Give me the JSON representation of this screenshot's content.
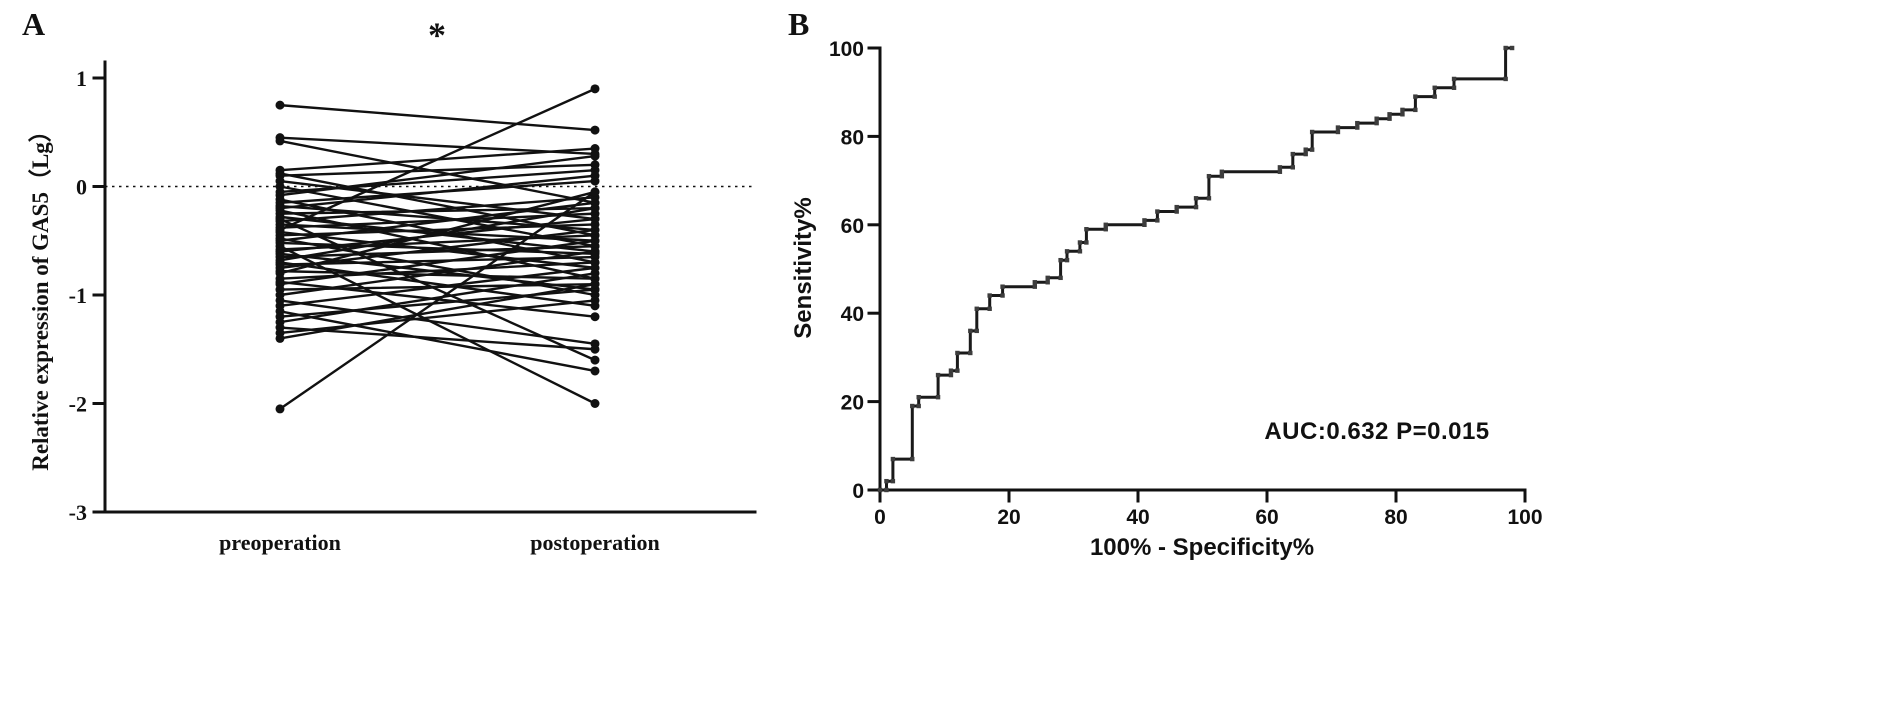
{
  "colors": {
    "line": "#111111",
    "background": "#ffffff"
  },
  "chart_data": [
    {
      "type": "line",
      "subtype": "paired-before-after-plot",
      "panel_label": "A",
      "significance_marker": "*",
      "title": "",
      "ylabel": "Relative expression of GAS5（Lg）",
      "xlabel": "",
      "categories": [
        "preoperation",
        "postoperation"
      ],
      "ylim": [
        -3,
        1
      ],
      "yticks": [
        1,
        0,
        -1,
        -2,
        -3
      ],
      "reference_line_y": 0,
      "grid": false,
      "pairs": [
        [
          0.75,
          0.52
        ],
        [
          0.45,
          0.3
        ],
        [
          0.42,
          -0.15
        ],
        [
          0.15,
          0.35
        ],
        [
          0.12,
          -0.45
        ],
        [
          0.1,
          0.2
        ],
        [
          0.05,
          -0.3
        ],
        [
          0.0,
          -0.55
        ],
        [
          -0.05,
          0.15
        ],
        [
          -0.08,
          0.28
        ],
        [
          -0.12,
          -0.7
        ],
        [
          -0.15,
          0.05
        ],
        [
          -0.18,
          -0.4
        ],
        [
          -0.2,
          0.1
        ],
        [
          -0.22,
          -0.85
        ],
        [
          -0.25,
          -0.2
        ],
        [
          -0.28,
          -0.6
        ],
        [
          -0.3,
          -1.6
        ],
        [
          -0.32,
          -0.1
        ],
        [
          -0.35,
          -0.5
        ],
        [
          -0.38,
          -0.25
        ],
        [
          -0.4,
          0.9
        ],
        [
          -0.42,
          -0.75
        ],
        [
          -0.45,
          -0.35
        ],
        [
          -0.48,
          -1.0
        ],
        [
          -0.5,
          -0.15
        ],
        [
          -0.52,
          -0.62
        ],
        [
          -0.55,
          -2.0
        ],
        [
          -0.58,
          -0.45
        ],
        [
          -0.6,
          -0.3
        ],
        [
          -0.62,
          -0.95
        ],
        [
          -0.65,
          -0.55
        ],
        [
          -0.68,
          -0.2
        ],
        [
          -0.7,
          -1.1
        ],
        [
          -0.72,
          -0.65
        ],
        [
          -0.75,
          -0.4
        ],
        [
          -0.78,
          -0.85
        ],
        [
          -0.8,
          -0.05
        ],
        [
          -0.85,
          -0.7
        ],
        [
          -0.88,
          -1.2
        ],
        [
          -0.9,
          -0.5
        ],
        [
          -0.95,
          -0.9
        ],
        [
          -1.0,
          -0.6
        ],
        [
          -1.05,
          -1.45
        ],
        [
          -1.1,
          -0.75
        ],
        [
          -1.15,
          -1.7
        ],
        [
          -1.2,
          -0.95
        ],
        [
          -1.25,
          -0.8
        ],
        [
          -1.3,
          -1.5
        ],
        [
          -1.35,
          -1.05
        ],
        [
          -1.4,
          -0.9
        ],
        [
          -2.05,
          -0.05
        ]
      ]
    },
    {
      "type": "line",
      "subtype": "roc-curve",
      "panel_label": "B",
      "title": "",
      "xlabel": "100% - Specificity%",
      "ylabel": "Sensitivity%",
      "xlim": [
        0,
        100
      ],
      "ylim": [
        0,
        100
      ],
      "xticks": [
        0,
        20,
        40,
        60,
        80,
        100
      ],
      "yticks": [
        0,
        20,
        40,
        60,
        80,
        100
      ],
      "annotation": "AUC:0.632 P=0.015",
      "grid": false,
      "roc_points": [
        [
          0,
          0
        ],
        [
          1,
          0
        ],
        [
          1,
          2
        ],
        [
          2,
          2
        ],
        [
          2,
          7
        ],
        [
          5,
          7
        ],
        [
          5,
          19
        ],
        [
          6,
          19
        ],
        [
          6,
          21
        ],
        [
          9,
          21
        ],
        [
          9,
          26
        ],
        [
          11,
          26
        ],
        [
          11,
          27
        ],
        [
          12,
          27
        ],
        [
          12,
          31
        ],
        [
          14,
          31
        ],
        [
          14,
          36
        ],
        [
          15,
          36
        ],
        [
          15,
          41
        ],
        [
          17,
          41
        ],
        [
          17,
          44
        ],
        [
          19,
          44
        ],
        [
          19,
          46
        ],
        [
          24,
          46
        ],
        [
          24,
          47
        ],
        [
          26,
          47
        ],
        [
          26,
          48
        ],
        [
          28,
          48
        ],
        [
          28,
          52
        ],
        [
          29,
          52
        ],
        [
          29,
          54
        ],
        [
          31,
          54
        ],
        [
          31,
          56
        ],
        [
          32,
          56
        ],
        [
          32,
          59
        ],
        [
          35,
          59
        ],
        [
          35,
          60
        ],
        [
          41,
          60
        ],
        [
          41,
          61
        ],
        [
          43,
          61
        ],
        [
          43,
          63
        ],
        [
          46,
          63
        ],
        [
          46,
          64
        ],
        [
          49,
          64
        ],
        [
          49,
          66
        ],
        [
          51,
          66
        ],
        [
          51,
          71
        ],
        [
          53,
          71
        ],
        [
          53,
          72
        ],
        [
          62,
          72
        ],
        [
          62,
          73
        ],
        [
          64,
          73
        ],
        [
          64,
          76
        ],
        [
          66,
          76
        ],
        [
          66,
          77
        ],
        [
          67,
          77
        ],
        [
          67,
          81
        ],
        [
          71,
          81
        ],
        [
          71,
          82
        ],
        [
          74,
          82
        ],
        [
          74,
          83
        ],
        [
          77,
          83
        ],
        [
          77,
          84
        ],
        [
          79,
          84
        ],
        [
          79,
          85
        ],
        [
          81,
          85
        ],
        [
          81,
          86
        ],
        [
          83,
          86
        ],
        [
          83,
          89
        ],
        [
          86,
          89
        ],
        [
          86,
          91
        ],
        [
          89,
          91
        ],
        [
          89,
          93
        ],
        [
          97,
          93
        ],
        [
          97,
          100
        ],
        [
          98,
          100
        ]
      ]
    }
  ]
}
